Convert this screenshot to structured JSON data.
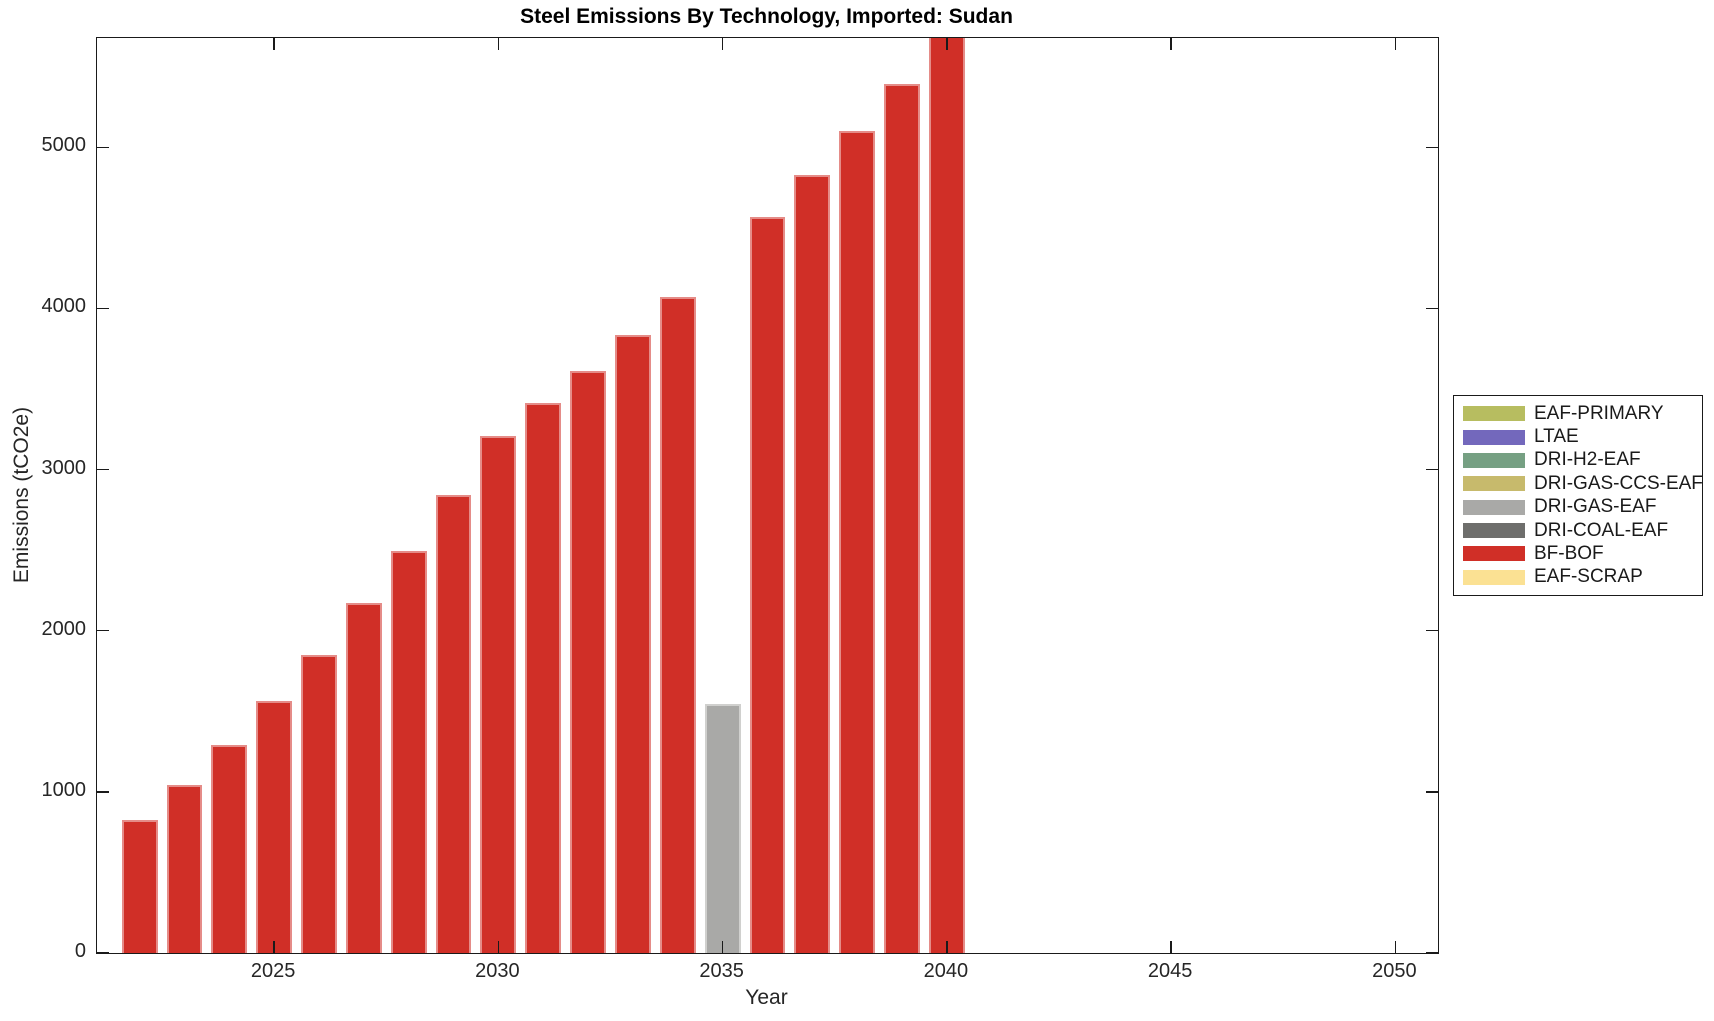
{
  "figure": {
    "background": "#ffffff",
    "axis_color": "#1a1a1a",
    "text_color": "#262626"
  },
  "chart_data": {
    "type": "bar",
    "stacked": true,
    "title": "Steel Emissions By Technology, Imported: Sudan",
    "xlabel": "Year",
    "ylabel": "Emissions (tCO2e)",
    "xlim": [
      2021.05,
      2050.95
    ],
    "ylim": [
      0,
      5678
    ],
    "xticks": [
      2025,
      2030,
      2035,
      2040,
      2045,
      2050
    ],
    "yticks": [
      0,
      1000,
      2000,
      3000,
      4000,
      5000
    ],
    "grid": false,
    "legend_position": "right-outside",
    "bar_width_years": 0.8,
    "years": [
      2022,
      2023,
      2024,
      2025,
      2026,
      2027,
      2028,
      2029,
      2030,
      2031,
      2032,
      2033,
      2034,
      2035,
      2036,
      2037,
      2038,
      2039,
      2040
    ],
    "series": [
      {
        "name": "EAF-PRIMARY",
        "color": "#b7bd60",
        "values": [
          0,
          0,
          0,
          0,
          0,
          0,
          0,
          0,
          0,
          0,
          0,
          0,
          0,
          0,
          0,
          0,
          0,
          0,
          0
        ]
      },
      {
        "name": "LTAE",
        "color": "#7368bc",
        "values": [
          0,
          0,
          0,
          0,
          0,
          0,
          0,
          0,
          0,
          0,
          0,
          0,
          0,
          0,
          0,
          0,
          0,
          0,
          0
        ]
      },
      {
        "name": "DRI-H2-EAF",
        "color": "#76a083",
        "values": [
          0,
          0,
          0,
          0,
          0,
          0,
          0,
          0,
          0,
          0,
          0,
          0,
          0,
          0,
          0,
          0,
          0,
          0,
          0
        ]
      },
      {
        "name": "DRI-GAS-CCS-EAF",
        "color": "#c7ba6c",
        "values": [
          0,
          0,
          0,
          0,
          0,
          0,
          0,
          0,
          0,
          0,
          0,
          0,
          0,
          0,
          0,
          0,
          0,
          0,
          0
        ]
      },
      {
        "name": "DRI-GAS-EAF",
        "color": "#a9a9a7",
        "values": [
          0,
          0,
          0,
          0,
          0,
          0,
          0,
          0,
          0,
          0,
          0,
          0,
          0,
          1545,
          0,
          0,
          0,
          0,
          0
        ]
      },
      {
        "name": "DRI-COAL-EAF",
        "color": "#6e6e6c",
        "values": [
          0,
          0,
          0,
          0,
          0,
          0,
          0,
          0,
          0,
          0,
          0,
          0,
          0,
          0,
          0,
          0,
          0,
          0,
          0
        ]
      },
      {
        "name": "BF-BOF",
        "color": "#d02f27",
        "values": [
          825,
          1045,
          1290,
          1565,
          1850,
          2170,
          2495,
          2840,
          3210,
          3410,
          3610,
          3835,
          4070,
          0,
          4565,
          4825,
          5100,
          5390,
          5700
        ]
      },
      {
        "name": "EAF-SCRAP",
        "color": "#fbe193",
        "values": [
          0,
          0,
          0,
          0,
          0,
          0,
          0,
          0,
          0,
          0,
          0,
          0,
          0,
          0,
          0,
          0,
          0,
          0,
          0
        ]
      }
    ]
  }
}
